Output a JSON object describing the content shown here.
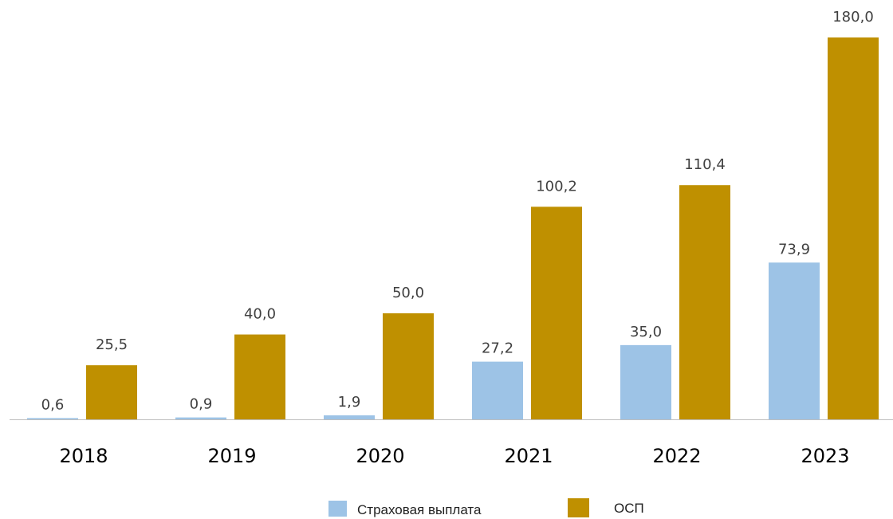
{
  "chart_data": {
    "type": "bar",
    "categories": [
      "2018",
      "2019",
      "2020",
      "2021",
      "2022",
      "2023"
    ],
    "series": [
      {
        "name": "Страховая выплата",
        "values": [
          0.6,
          0.9,
          1.9,
          27.2,
          35.0,
          73.9
        ],
        "labels": [
          "0,6",
          "0,9",
          "1,9",
          "27,2",
          "35,0",
          "73,9"
        ],
        "color": "#9DC3E6"
      },
      {
        "name": "ОСП",
        "values": [
          25.5,
          40.0,
          50.0,
          100.2,
          110.4,
          180.0
        ],
        "labels": [
          "25,5",
          "40,0",
          "50,0",
          "100,2",
          "110,4",
          "180,0"
        ],
        "color": "#BF9000"
      }
    ],
    "title": "",
    "xlabel": "",
    "ylabel": "",
    "ylim": [
      0,
      180
    ],
    "grid": false,
    "legend_position": "bottom",
    "axis_color": "#BFBFBF"
  }
}
